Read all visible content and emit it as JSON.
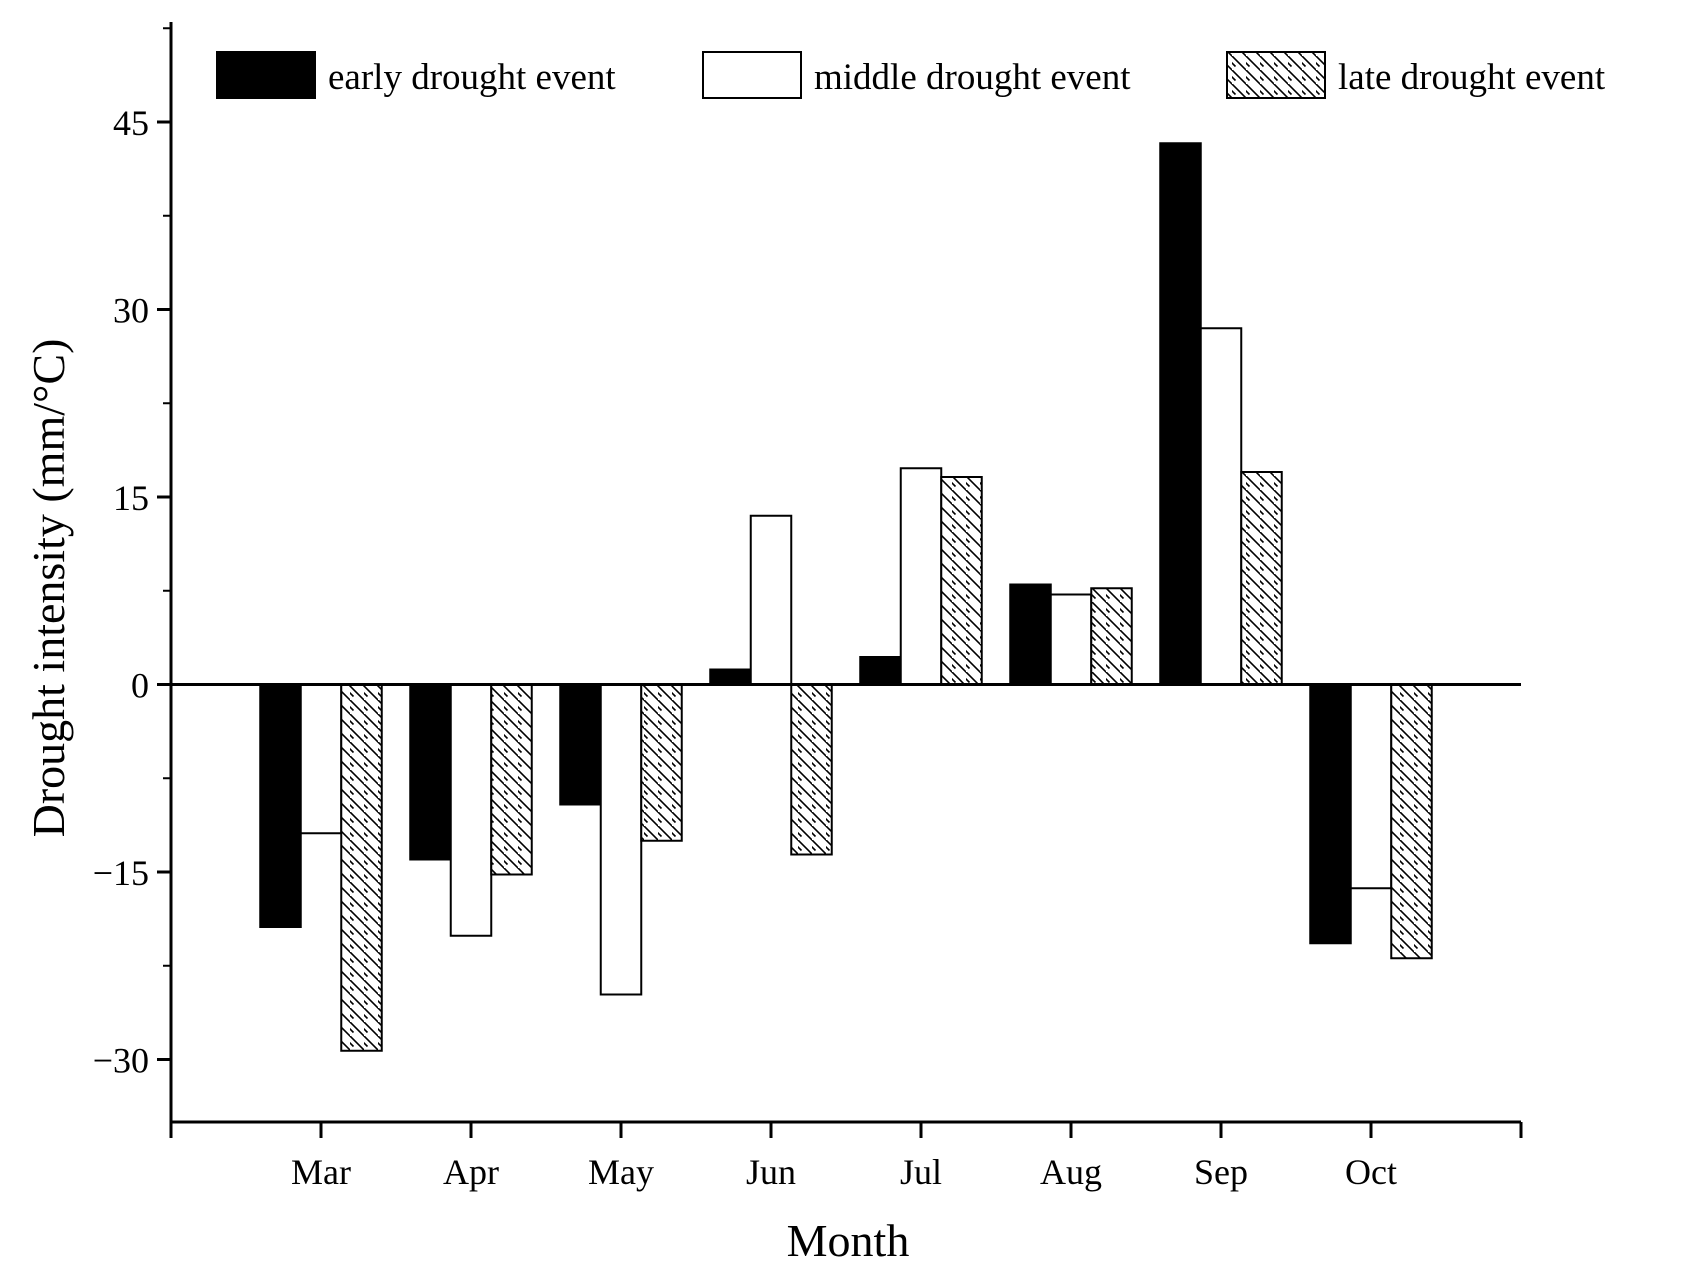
{
  "chart_data": {
    "type": "bar",
    "title": "",
    "xlabel": "Month",
    "ylabel": "Drought intensity (mm/°C)",
    "categories": [
      "Mar",
      "Apr",
      "May",
      "Jun",
      "Jul",
      "Aug",
      "Sep",
      "Oct"
    ],
    "ylim": [
      -35,
      53
    ],
    "yticks": [
      "45",
      "30",
      "15",
      "0",
      "−15",
      "−30"
    ],
    "ytick_values": [
      45,
      30,
      15,
      0,
      -15,
      -30
    ],
    "grid": false,
    "legend_position": "top",
    "series": [
      {
        "name": "early drought event",
        "fill": "#000000",
        "pattern": "solid",
        "values": [
          -19.4,
          -14.0,
          -9.6,
          1.2,
          2.2,
          8.0,
          43.3,
          -20.7
        ]
      },
      {
        "name": "middle drought event",
        "fill": "#ffffff",
        "pattern": "none",
        "values": [
          -11.9,
          -20.1,
          -24.8,
          13.5,
          17.3,
          7.2,
          28.5,
          -16.3
        ]
      },
      {
        "name": "late drought event",
        "fill": "#ffffff",
        "pattern": "diagonal-hatch",
        "values": [
          -29.3,
          -15.2,
          -12.5,
          -13.6,
          16.6,
          7.7,
          17.0,
          -21.9
        ]
      }
    ]
  }
}
